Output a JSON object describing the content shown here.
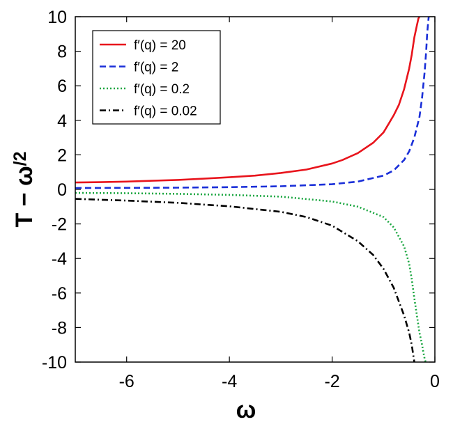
{
  "chart_data": {
    "type": "line",
    "title": "",
    "xlabel": "ω",
    "ylabel_main": "T − ω",
    "ylabel_sub": "/2",
    "xlim": [
      -7,
      0
    ],
    "ylim": [
      -10,
      10
    ],
    "xticks": [
      -6,
      -4,
      -2,
      0
    ],
    "yticks": [
      -10,
      -8,
      -6,
      -4,
      -2,
      0,
      2,
      4,
      6,
      8,
      10
    ],
    "grid": false,
    "legend_position": "top-left",
    "series": [
      {
        "name": "f′(q) = 20",
        "color": "#e8141c",
        "dash": "solid",
        "x": [
          -7,
          -6.5,
          -6,
          -5.5,
          -5,
          -4.5,
          -4,
          -3.5,
          -3,
          -2.5,
          -2,
          -1.8,
          -1.5,
          -1.2,
          -1.0,
          -0.9,
          -0.8,
          -0.7,
          -0.6,
          -0.5,
          -0.45,
          -0.4,
          -0.35,
          -0.32,
          -0.3
        ],
        "y": [
          0.4,
          0.42,
          0.45,
          0.5,
          0.55,
          0.62,
          0.7,
          0.8,
          0.95,
          1.15,
          1.5,
          1.7,
          2.1,
          2.7,
          3.3,
          3.8,
          4.3,
          4.9,
          5.8,
          7.0,
          7.8,
          8.8,
          9.5,
          9.9,
          10.0
        ]
      },
      {
        "name": "f′(q) = 2",
        "color": "#1a2fd8",
        "dash": "dashed",
        "x": [
          -7,
          -6,
          -5,
          -4,
          -3,
          -2,
          -1.5,
          -1.0,
          -0.8,
          -0.6,
          -0.5,
          -0.4,
          -0.3,
          -0.25,
          -0.2,
          -0.17,
          -0.15,
          -0.13,
          -0.12
        ],
        "y": [
          0.08,
          0.09,
          0.1,
          0.13,
          0.18,
          0.3,
          0.45,
          0.8,
          1.1,
          1.7,
          2.2,
          3.0,
          4.2,
          5.3,
          6.8,
          8.0,
          9.0,
          9.7,
          10.0
        ]
      },
      {
        "name": "f′(q) = 0.2",
        "color": "#1aa640",
        "dash": "dotted",
        "x": [
          -7,
          -6,
          -5,
          -4,
          -3,
          -2,
          -1.5,
          -1.0,
          -0.8,
          -0.6,
          -0.5,
          -0.45,
          -0.4,
          -0.35,
          -0.3,
          -0.25,
          -0.22,
          -0.2,
          -0.18,
          -0.17
        ],
        "y": [
          -0.2,
          -0.22,
          -0.26,
          -0.32,
          -0.42,
          -0.7,
          -1.0,
          -1.6,
          -2.2,
          -3.3,
          -4.3,
          -5.2,
          -6.3,
          -7.3,
          -8.3,
          -9.0,
          -9.5,
          -9.8,
          -10.0,
          -10.0
        ]
      },
      {
        "name": "f′(q) = 0.02",
        "color": "#000000",
        "dash": "dashdot",
        "x": [
          -7,
          -6,
          -5,
          -4,
          -3,
          -2.5,
          -2,
          -1.5,
          -1.2,
          -1.0,
          -0.8,
          -0.7,
          -0.6,
          -0.5,
          -0.45,
          -0.4
        ],
        "y": [
          -0.55,
          -0.65,
          -0.78,
          -0.98,
          -1.3,
          -1.6,
          -2.1,
          -3.0,
          -3.8,
          -4.6,
          -5.7,
          -6.5,
          -7.3,
          -8.3,
          -9.0,
          -10.0
        ]
      }
    ]
  }
}
